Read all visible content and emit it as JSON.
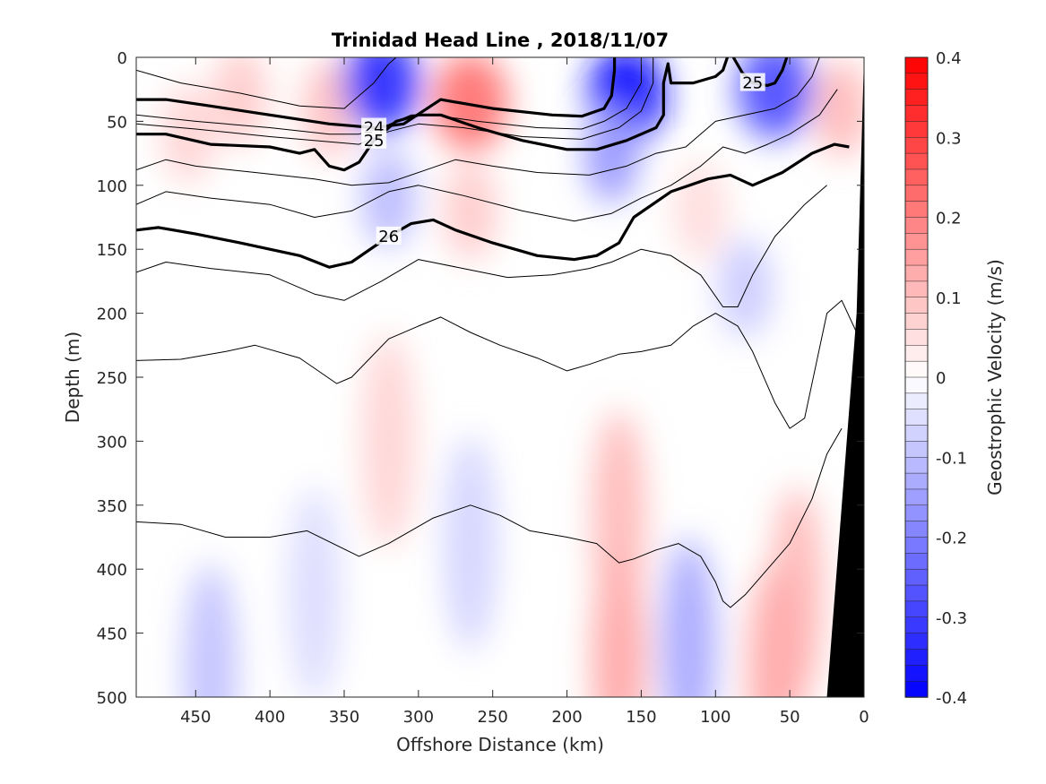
{
  "chart_data": {
    "type": "heatmap",
    "title": "Trinidad Head Line , 2018/11/07",
    "xlabel": "Offshore Distance (km)",
    "ylabel": "Depth (m)",
    "xlim": [
      490,
      0
    ],
    "ylim": [
      500,
      0
    ],
    "xticks": [
      "450",
      "400",
      "350",
      "300",
      "250",
      "200",
      "150",
      "100",
      "50",
      "0"
    ],
    "yticks": [
      "0",
      "50",
      "100",
      "150",
      "200",
      "250",
      "300",
      "350",
      "400",
      "450",
      "500"
    ],
    "colorbar": {
      "label": "Geostrophic Velocity (m/s)",
      "range": [
        -0.4,
        0.4
      ],
      "step": 0.02,
      "ticks": [
        "0.4",
        "0.3",
        "0.2",
        "0.1",
        "0",
        "-0.1",
        "-0.2",
        "-0.3",
        "-0.4"
      ],
      "color_max": "#ff0000",
      "color_zero": "#ffffff",
      "color_min": "#0000ff"
    },
    "velocity_patches": [
      {
        "x": 420,
        "y": 30,
        "v": 0.06
      },
      {
        "x": 455,
        "y": 60,
        "v": 0.05
      },
      {
        "x": 360,
        "y": 40,
        "v": 0.07
      },
      {
        "x": 325,
        "y": 20,
        "v": -0.24
      },
      {
        "x": 320,
        "y": 110,
        "v": -0.08
      },
      {
        "x": 265,
        "y": 35,
        "v": 0.16
      },
      {
        "x": 265,
        "y": 120,
        "v": 0.06
      },
      {
        "x": 160,
        "y": 30,
        "v": -0.28
      },
      {
        "x": 170,
        "y": 75,
        "v": -0.12
      },
      {
        "x": 110,
        "y": 120,
        "v": 0.04
      },
      {
        "x": 60,
        "y": 25,
        "v": -0.2
      },
      {
        "x": 80,
        "y": 180,
        "v": -0.06
      },
      {
        "x": 15,
        "y": 40,
        "v": 0.08
      },
      {
        "x": 320,
        "y": 300,
        "v": 0.05
      },
      {
        "x": 370,
        "y": 420,
        "v": -0.04
      },
      {
        "x": 440,
        "y": 480,
        "v": -0.07
      },
      {
        "x": 265,
        "y": 380,
        "v": -0.05
      },
      {
        "x": 165,
        "y": 360,
        "v": 0.08
      },
      {
        "x": 165,
        "y": 470,
        "v": 0.1
      },
      {
        "x": 118,
        "y": 460,
        "v": -0.1
      },
      {
        "x": 45,
        "y": 420,
        "v": 0.08
      },
      {
        "x": 60,
        "y": 480,
        "v": 0.1
      }
    ],
    "density_contours": [
      {
        "level": "24",
        "bold": true,
        "points": [
          [
            490,
            33
          ],
          [
            470,
            33
          ],
          [
            440,
            38
          ],
          [
            400,
            45
          ],
          [
            360,
            52
          ],
          [
            330,
            55
          ],
          [
            310,
            52
          ],
          [
            285,
            33
          ],
          [
            250,
            40
          ],
          [
            210,
            45
          ],
          [
            190,
            46
          ],
          [
            175,
            40
          ],
          [
            170,
            30
          ],
          [
            168,
            10
          ],
          [
            168,
            0
          ]
        ]
      },
      {
        "level": "25",
        "bold": true,
        "points": [
          [
            490,
            60
          ],
          [
            470,
            60
          ],
          [
            440,
            68
          ],
          [
            400,
            70
          ],
          [
            380,
            75
          ],
          [
            370,
            72
          ],
          [
            360,
            85
          ],
          [
            350,
            88
          ],
          [
            340,
            82
          ],
          [
            330,
            65
          ],
          [
            315,
            50
          ],
          [
            300,
            45
          ],
          [
            285,
            45
          ],
          [
            260,
            55
          ],
          [
            230,
            65
          ],
          [
            200,
            72
          ],
          [
            180,
            72
          ],
          [
            160,
            65
          ],
          [
            140,
            55
          ],
          [
            135,
            45
          ],
          [
            135,
            20
          ],
          [
            132,
            5
          ],
          [
            130,
            20
          ],
          [
            115,
            20
          ],
          [
            100,
            15
          ],
          [
            95,
            10
          ],
          [
            92,
            0
          ]
        ]
      },
      {
        "level": "25",
        "bold": true,
        "points": [
          [
            88,
            0
          ],
          [
            82,
            12
          ],
          [
            75,
            20
          ],
          [
            65,
            22
          ],
          [
            60,
            20
          ],
          [
            55,
            10
          ],
          [
            52,
            0
          ]
        ]
      },
      {
        "level": "26",
        "bold": true,
        "points": [
          [
            490,
            135
          ],
          [
            475,
            133
          ],
          [
            450,
            138
          ],
          [
            420,
            145
          ],
          [
            400,
            150
          ],
          [
            380,
            155
          ],
          [
            360,
            164
          ],
          [
            345,
            160
          ],
          [
            320,
            140
          ],
          [
            305,
            130
          ],
          [
            290,
            127
          ],
          [
            275,
            135
          ],
          [
            250,
            145
          ],
          [
            220,
            155
          ],
          [
            195,
            158
          ],
          [
            180,
            155
          ],
          [
            165,
            145
          ],
          [
            155,
            125
          ],
          [
            130,
            105
          ],
          [
            105,
            95
          ],
          [
            90,
            92
          ],
          [
            75,
            100
          ],
          [
            55,
            90
          ],
          [
            35,
            75
          ],
          [
            20,
            68
          ],
          [
            10,
            70
          ]
        ]
      },
      {
        "level": "",
        "bold": false,
        "points": [
          [
            490,
            10
          ],
          [
            460,
            20
          ],
          [
            420,
            28
          ],
          [
            380,
            38
          ],
          [
            350,
            40
          ],
          [
            330,
            20
          ],
          [
            320,
            5
          ],
          [
            315,
            0
          ]
        ]
      },
      {
        "level": "",
        "bold": false,
        "points": [
          [
            490,
            45
          ],
          [
            450,
            50
          ],
          [
            400,
            55
          ],
          [
            360,
            60
          ],
          [
            340,
            60
          ],
          [
            325,
            55
          ],
          [
            305,
            45
          ],
          [
            290,
            45
          ],
          [
            260,
            50
          ],
          [
            220,
            55
          ],
          [
            190,
            56
          ],
          [
            175,
            50
          ],
          [
            160,
            40
          ],
          [
            150,
            20
          ],
          [
            150,
            0
          ]
        ]
      },
      {
        "level": "",
        "bold": false,
        "points": [
          [
            490,
            52
          ],
          [
            450,
            56
          ],
          [
            400,
            62
          ],
          [
            360,
            66
          ],
          [
            340,
            68
          ],
          [
            320,
            58
          ],
          [
            300,
            52
          ],
          [
            270,
            55
          ],
          [
            230,
            62
          ],
          [
            190,
            64
          ],
          [
            165,
            55
          ],
          [
            150,
            42
          ],
          [
            142,
            20
          ],
          [
            142,
            0
          ]
        ]
      },
      {
        "level": "",
        "bold": false,
        "points": [
          [
            490,
            88
          ],
          [
            470,
            80
          ],
          [
            450,
            85
          ],
          [
            410,
            90
          ],
          [
            370,
            95
          ],
          [
            345,
            100
          ],
          [
            320,
            98
          ],
          [
            295,
            88
          ],
          [
            275,
            80
          ],
          [
            250,
            85
          ],
          [
            220,
            90
          ],
          [
            185,
            92
          ],
          [
            160,
            85
          ],
          [
            140,
            75
          ],
          [
            120,
            70
          ],
          [
            100,
            50
          ],
          [
            80,
            45
          ],
          [
            60,
            40
          ],
          [
            45,
            30
          ],
          [
            35,
            15
          ],
          [
            30,
            0
          ]
        ]
      },
      {
        "level": "",
        "bold": false,
        "points": [
          [
            490,
            115
          ],
          [
            470,
            105
          ],
          [
            440,
            110
          ],
          [
            400,
            115
          ],
          [
            370,
            125
          ],
          [
            345,
            120
          ],
          [
            320,
            105
          ],
          [
            300,
            100
          ],
          [
            270,
            108
          ],
          [
            230,
            120
          ],
          [
            195,
            128
          ],
          [
            170,
            122
          ],
          [
            150,
            110
          ],
          [
            130,
            100
          ],
          [
            110,
            85
          ],
          [
            95,
            70
          ],
          [
            80,
            75
          ],
          [
            65,
            68
          ],
          [
            50,
            60
          ],
          [
            30,
            45
          ],
          [
            18,
            25
          ]
        ]
      },
      {
        "level": "",
        "bold": false,
        "points": [
          [
            490,
            168
          ],
          [
            470,
            160
          ],
          [
            440,
            165
          ],
          [
            400,
            170
          ],
          [
            370,
            185
          ],
          [
            350,
            190
          ],
          [
            325,
            175
          ],
          [
            300,
            158
          ],
          [
            270,
            165
          ],
          [
            240,
            172
          ],
          [
            210,
            170
          ],
          [
            185,
            165
          ],
          [
            170,
            160
          ],
          [
            150,
            150
          ],
          [
            130,
            155
          ],
          [
            110,
            170
          ],
          [
            95,
            195
          ],
          [
            85,
            195
          ],
          [
            75,
            170
          ],
          [
            60,
            140
          ],
          [
            40,
            115
          ],
          [
            25,
            100
          ]
        ]
      },
      {
        "level": "",
        "bold": false,
        "points": [
          [
            490,
            237
          ],
          [
            460,
            236
          ],
          [
            430,
            230
          ],
          [
            410,
            225
          ],
          [
            380,
            235
          ],
          [
            355,
            255
          ],
          [
            345,
            250
          ],
          [
            320,
            220
          ],
          [
            300,
            210
          ],
          [
            285,
            203
          ],
          [
            265,
            215
          ],
          [
            245,
            225
          ],
          [
            220,
            235
          ],
          [
            200,
            245
          ],
          [
            185,
            240
          ],
          [
            165,
            232
          ],
          [
            150,
            230
          ],
          [
            130,
            225
          ],
          [
            115,
            210
          ],
          [
            100,
            200
          ],
          [
            85,
            210
          ],
          [
            75,
            230
          ],
          [
            60,
            270
          ],
          [
            50,
            290
          ],
          [
            40,
            282
          ],
          [
            25,
            200
          ],
          [
            15,
            190
          ],
          [
            5,
            215
          ]
        ]
      },
      {
        "level": "",
        "bold": false,
        "points": [
          [
            490,
            363
          ],
          [
            460,
            365
          ],
          [
            430,
            375
          ],
          [
            400,
            375
          ],
          [
            375,
            370
          ],
          [
            340,
            390
          ],
          [
            320,
            380
          ],
          [
            290,
            360
          ],
          [
            265,
            350
          ],
          [
            245,
            358
          ],
          [
            225,
            370
          ],
          [
            200,
            375
          ],
          [
            180,
            380
          ],
          [
            165,
            395
          ],
          [
            155,
            392
          ],
          [
            140,
            385
          ],
          [
            125,
            380
          ],
          [
            110,
            390
          ],
          [
            100,
            410
          ],
          [
            95,
            425
          ],
          [
            90,
            430
          ],
          [
            80,
            420
          ],
          [
            65,
            400
          ],
          [
            50,
            380
          ],
          [
            35,
            345
          ],
          [
            25,
            310
          ],
          [
            15,
            290
          ]
        ]
      }
    ]
  }
}
